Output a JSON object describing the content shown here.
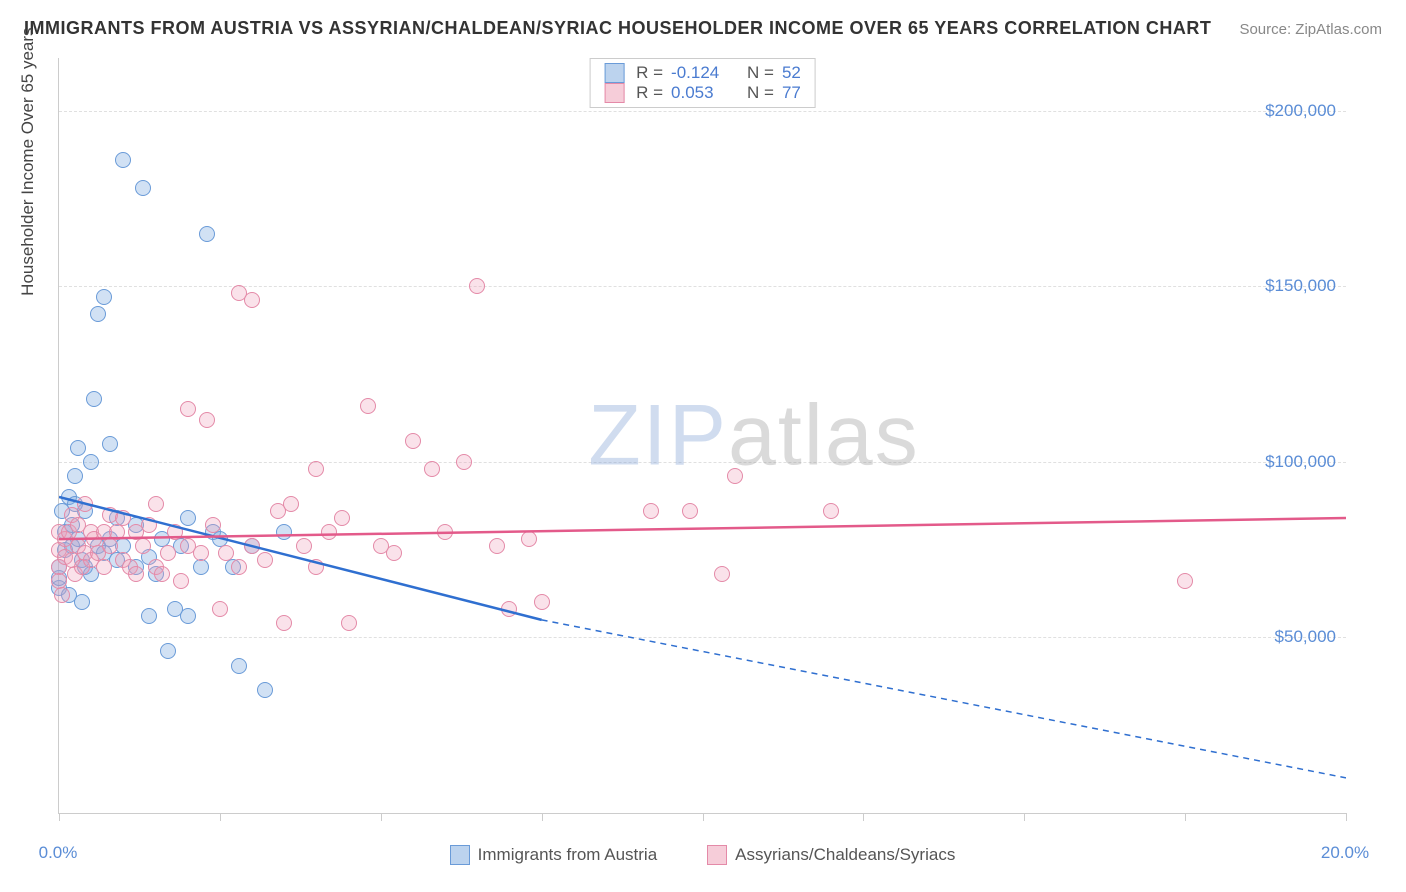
{
  "title": "IMMIGRANTS FROM AUSTRIA VS ASSYRIAN/CHALDEAN/SYRIAC HOUSEHOLDER INCOME OVER 65 YEARS CORRELATION CHART",
  "source": "Source: ZipAtlas.com",
  "watermark": {
    "part1": "ZIP",
    "part2": "atlas"
  },
  "y_axis": {
    "title": "Householder Income Over 65 years",
    "min": 0,
    "max": 215000,
    "ticks": [
      50000,
      100000,
      150000,
      200000
    ],
    "tick_labels": [
      "$50,000",
      "$100,000",
      "$150,000",
      "$200,000"
    ]
  },
  "x_axis": {
    "min": 0,
    "max": 20.0,
    "ticks": [
      0,
      2.5,
      5,
      7.5,
      10,
      12.5,
      15,
      17.5,
      20
    ],
    "end_labels": {
      "left": "0.0%",
      "right": "20.0%"
    }
  },
  "series": [
    {
      "key": "austria",
      "legend_label": "Immigrants from Austria",
      "fill": "rgba(122,168,224,0.35)",
      "stroke": "#6a9bd8",
      "swatch_fill": "#bcd3ee",
      "swatch_border": "#6a9bd8",
      "line_color": "#2f6fd0",
      "R": "-0.124",
      "N": "52",
      "trend": {
        "x1": 0,
        "y1": 90000,
        "x2": 7.5,
        "y2": 55000,
        "extend_style": "dashed",
        "x2_ext": 20,
        "y2_ext": 10000
      },
      "points": [
        [
          0.0,
          64000
        ],
        [
          0.0,
          67000
        ],
        [
          0.0,
          70000
        ],
        [
          0.05,
          86000
        ],
        [
          0.1,
          75000
        ],
        [
          0.1,
          80000
        ],
        [
          0.15,
          90000
        ],
        [
          0.2,
          76000
        ],
        [
          0.2,
          82000
        ],
        [
          0.25,
          88000
        ],
        [
          0.3,
          78000
        ],
        [
          0.3,
          104000
        ],
        [
          0.35,
          60000
        ],
        [
          0.35,
          72000
        ],
        [
          0.4,
          70000
        ],
        [
          0.4,
          86000
        ],
        [
          0.5,
          68000
        ],
        [
          0.5,
          100000
        ],
        [
          0.55,
          118000
        ],
        [
          0.6,
          76000
        ],
        [
          0.6,
          142000
        ],
        [
          0.7,
          74000
        ],
        [
          0.7,
          147000
        ],
        [
          0.8,
          78000
        ],
        [
          0.8,
          105000
        ],
        [
          0.9,
          72000
        ],
        [
          0.9,
          84000
        ],
        [
          1.0,
          76000
        ],
        [
          1.0,
          186000
        ],
        [
          1.2,
          70000
        ],
        [
          1.2,
          82000
        ],
        [
          1.3,
          178000
        ],
        [
          1.4,
          73000
        ],
        [
          1.4,
          56000
        ],
        [
          1.5,
          68000
        ],
        [
          1.6,
          78000
        ],
        [
          1.7,
          46000
        ],
        [
          1.8,
          58000
        ],
        [
          1.9,
          76000
        ],
        [
          2.0,
          84000
        ],
        [
          2.0,
          56000
        ],
        [
          2.2,
          70000
        ],
        [
          2.3,
          165000
        ],
        [
          2.4,
          80000
        ],
        [
          2.5,
          78000
        ],
        [
          2.7,
          70000
        ],
        [
          2.8,
          42000
        ],
        [
          3.0,
          76000
        ],
        [
          3.2,
          35000
        ],
        [
          3.5,
          80000
        ],
        [
          0.15,
          62000
        ],
        [
          0.25,
          96000
        ]
      ]
    },
    {
      "key": "assyrian",
      "legend_label": "Assyrians/Chaldeans/Syriacs",
      "fill": "rgba(240,160,185,0.30)",
      "stroke": "#e48aa8",
      "swatch_fill": "#f6cdd9",
      "swatch_border": "#e48aa8",
      "line_color": "#e35a8a",
      "R": "0.053",
      "N": "77",
      "trend": {
        "x1": 0,
        "y1": 78000,
        "x2": 20,
        "y2": 84000,
        "extend_style": "solid"
      },
      "points": [
        [
          0.0,
          70000
        ],
        [
          0.0,
          75000
        ],
        [
          0.0,
          80000
        ],
        [
          0.0,
          66000
        ],
        [
          0.05,
          62000
        ],
        [
          0.1,
          73000
        ],
        [
          0.1,
          78000
        ],
        [
          0.15,
          80000
        ],
        [
          0.2,
          72000
        ],
        [
          0.2,
          85000
        ],
        [
          0.25,
          68000
        ],
        [
          0.3,
          76000
        ],
        [
          0.3,
          82000
        ],
        [
          0.35,
          70000
        ],
        [
          0.4,
          74000
        ],
        [
          0.4,
          88000
        ],
        [
          0.5,
          72000
        ],
        [
          0.5,
          80000
        ],
        [
          0.55,
          78000
        ],
        [
          0.6,
          74000
        ],
        [
          0.7,
          70000
        ],
        [
          0.7,
          80000
        ],
        [
          0.8,
          76000
        ],
        [
          0.8,
          85000
        ],
        [
          0.9,
          80000
        ],
        [
          1.0,
          72000
        ],
        [
          1.0,
          84000
        ],
        [
          1.1,
          70000
        ],
        [
          1.2,
          80000
        ],
        [
          1.2,
          68000
        ],
        [
          1.3,
          76000
        ],
        [
          1.4,
          82000
        ],
        [
          1.5,
          70000
        ],
        [
          1.5,
          88000
        ],
        [
          1.6,
          68000
        ],
        [
          1.7,
          74000
        ],
        [
          1.8,
          80000
        ],
        [
          1.9,
          66000
        ],
        [
          2.0,
          76000
        ],
        [
          2.0,
          115000
        ],
        [
          2.2,
          74000
        ],
        [
          2.3,
          112000
        ],
        [
          2.4,
          82000
        ],
        [
          2.5,
          58000
        ],
        [
          2.6,
          74000
        ],
        [
          2.8,
          148000
        ],
        [
          2.8,
          70000
        ],
        [
          3.0,
          76000
        ],
        [
          3.0,
          146000
        ],
        [
          3.2,
          72000
        ],
        [
          3.4,
          86000
        ],
        [
          3.5,
          54000
        ],
        [
          3.6,
          88000
        ],
        [
          3.8,
          76000
        ],
        [
          4.0,
          70000
        ],
        [
          4.0,
          98000
        ],
        [
          4.2,
          80000
        ],
        [
          4.4,
          84000
        ],
        [
          4.5,
          54000
        ],
        [
          4.8,
          116000
        ],
        [
          5.0,
          76000
        ],
        [
          5.2,
          74000
        ],
        [
          5.5,
          106000
        ],
        [
          5.8,
          98000
        ],
        [
          6.0,
          80000
        ],
        [
          6.3,
          100000
        ],
        [
          6.5,
          150000
        ],
        [
          6.8,
          76000
        ],
        [
          7.0,
          58000
        ],
        [
          7.3,
          78000
        ],
        [
          7.5,
          60000
        ],
        [
          9.2,
          86000
        ],
        [
          9.8,
          86000
        ],
        [
          10.3,
          68000
        ],
        [
          10.5,
          96000
        ],
        [
          12.0,
          86000
        ],
        [
          17.5,
          66000
        ]
      ]
    }
  ]
}
